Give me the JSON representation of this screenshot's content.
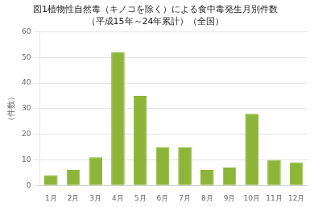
{
  "chart_data": {
    "type": "bar",
    "title": "図1植物性自然毒（キノコを除く）による食中毒発生月別件数",
    "subtitle": "（平成15年～24年累計）（全国）",
    "ylabel": "（件数）",
    "categories": [
      "1月",
      "2月",
      "3月",
      "4月",
      "5月",
      "6月",
      "7月",
      "8月",
      "9月",
      "10月",
      "11月",
      "12月"
    ],
    "values": [
      4,
      6,
      11,
      52,
      35,
      15,
      15,
      6,
      7,
      28,
      10,
      9
    ],
    "color": "#8DB53A",
    "ylim": [
      0,
      60
    ],
    "yticks": [
      0,
      10,
      20,
      30,
      40,
      50,
      60
    ],
    "grid": true
  }
}
